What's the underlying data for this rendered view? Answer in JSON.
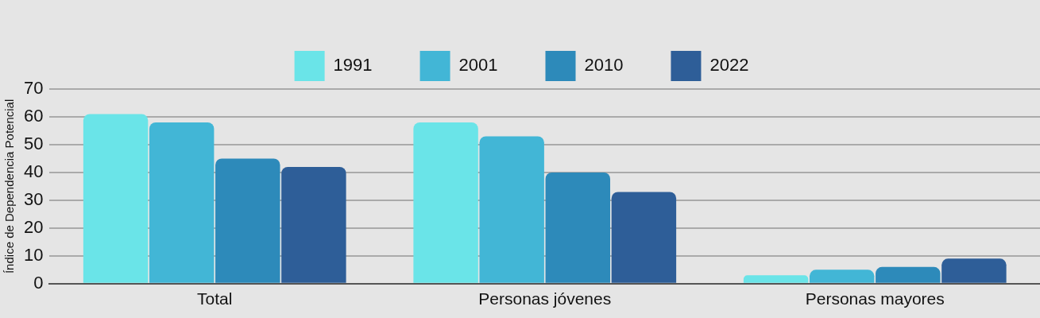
{
  "chart_data": {
    "type": "bar",
    "ylabel": "Índice de Dependencia Potencial",
    "categories": [
      "Total",
      "Personas jóvenes",
      "Personas mayores"
    ],
    "series": [
      {
        "name": "1991",
        "color": "#6ae4e8",
        "values": [
          61,
          58,
          3
        ]
      },
      {
        "name": "2001",
        "color": "#42b6d6",
        "values": [
          58,
          53,
          5
        ]
      },
      {
        "name": "2010",
        "color": "#2d8aba",
        "values": [
          45,
          40,
          6
        ]
      },
      {
        "name": "2022",
        "color": "#2e5e98",
        "values": [
          42,
          33,
          9
        ]
      }
    ],
    "ylim": [
      0,
      70
    ],
    "yticks": [
      0,
      10,
      20,
      30,
      40,
      50,
      60,
      70
    ],
    "grid": "y",
    "legend": "top"
  }
}
